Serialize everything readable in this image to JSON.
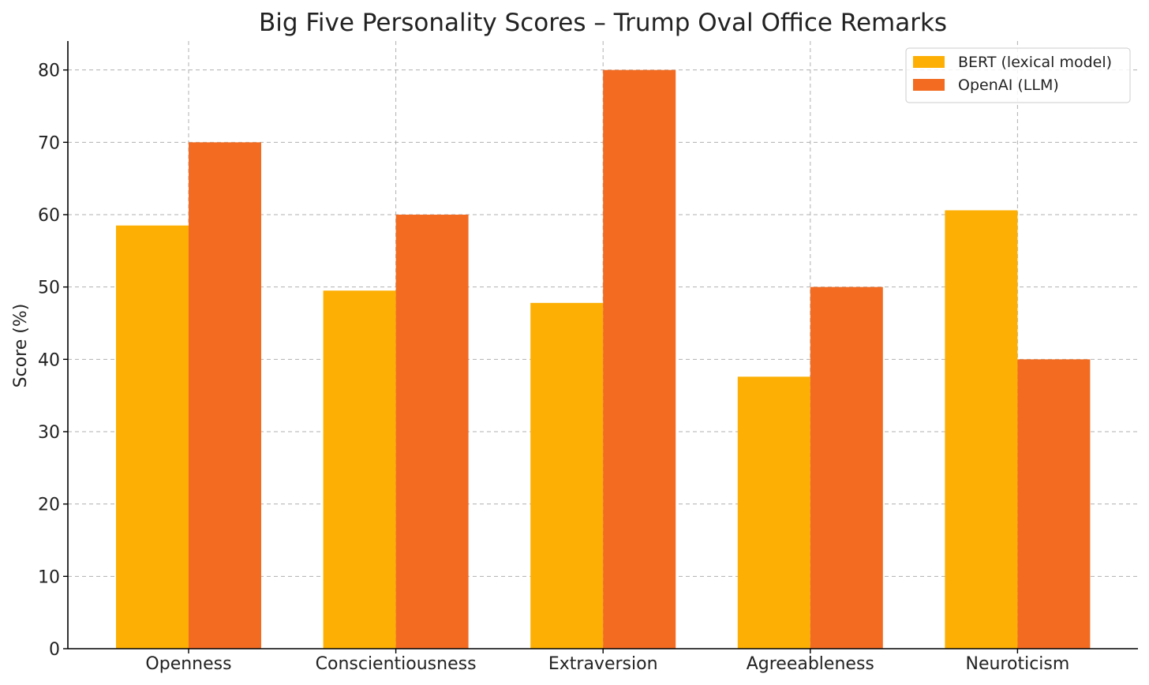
{
  "chart_data": {
    "type": "bar",
    "title": "Big Five Personality Scores – Trump Oval Office Remarks",
    "xlabel": "",
    "ylabel": "Score (%)",
    "ylim": [
      0,
      84
    ],
    "yticks": [
      0,
      10,
      20,
      30,
      40,
      50,
      60,
      70,
      80
    ],
    "categories": [
      "Openness",
      "Conscientiousness",
      "Extraversion",
      "Agreeableness",
      "Neuroticism"
    ],
    "series": [
      {
        "name": "BERT (lexical model)",
        "color": "#FDAF03",
        "values": [
          58.5,
          49.5,
          47.8,
          37.6,
          60.6
        ]
      },
      {
        "name": "OpenAI (LLM)",
        "color": "#F26B21",
        "values": [
          70,
          60,
          80,
          50,
          40
        ]
      }
    ],
    "grid": true,
    "legend_position": "top-right"
  }
}
